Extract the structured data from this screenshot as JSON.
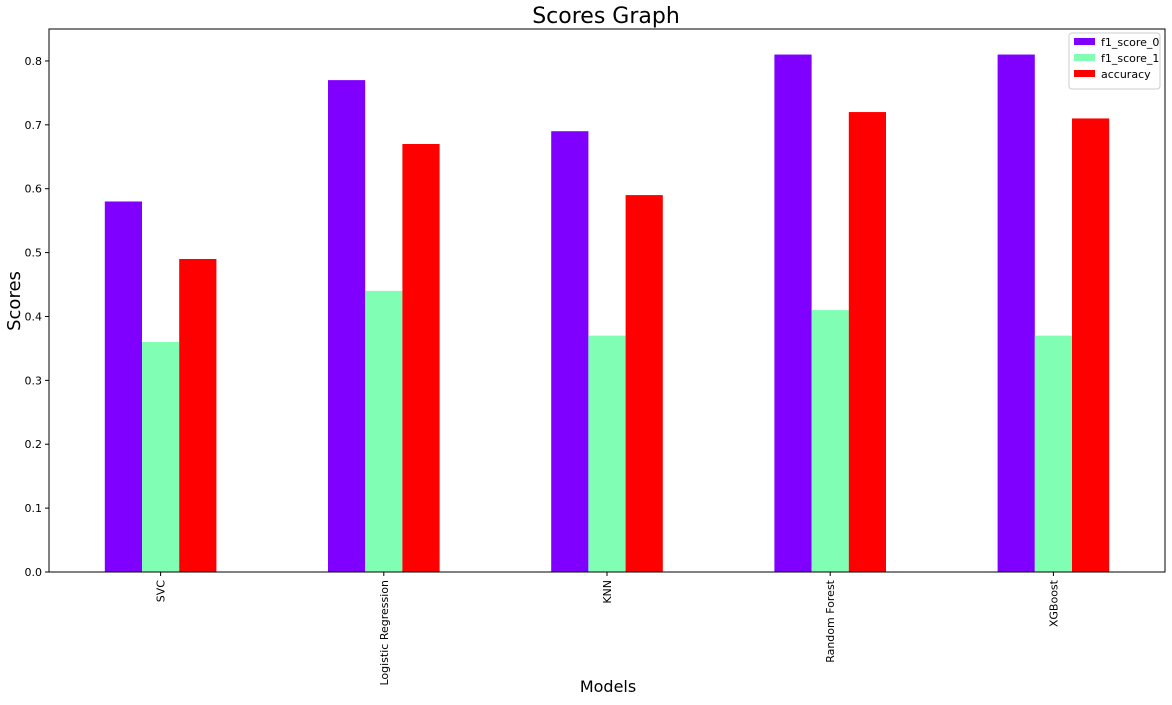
{
  "chart_data": {
    "type": "bar",
    "title": "Scores Graph",
    "xlabel": "Models",
    "ylabel": "Scores",
    "categories": [
      "SVC",
      "Logistic Regression",
      "KNN",
      "Random Forest",
      "XGBoost"
    ],
    "series": [
      {
        "name": "f1_score_0",
        "color": "#8000ff",
        "values": [
          0.58,
          0.77,
          0.69,
          0.81,
          0.81
        ]
      },
      {
        "name": "f1_score_1",
        "color": "#80ffb4",
        "values": [
          0.36,
          0.44,
          0.37,
          0.41,
          0.37
        ]
      },
      {
        "name": "accuracy",
        "color": "#ff0000",
        "values": [
          0.49,
          0.67,
          0.59,
          0.72,
          0.71
        ]
      }
    ],
    "ylim": [
      0,
      0.85
    ],
    "yticks": [
      "0.0",
      "0.1",
      "0.2",
      "0.3",
      "0.4",
      "0.5",
      "0.6",
      "0.7",
      "0.8"
    ],
    "grid": false,
    "legend_position": "top-right"
  }
}
